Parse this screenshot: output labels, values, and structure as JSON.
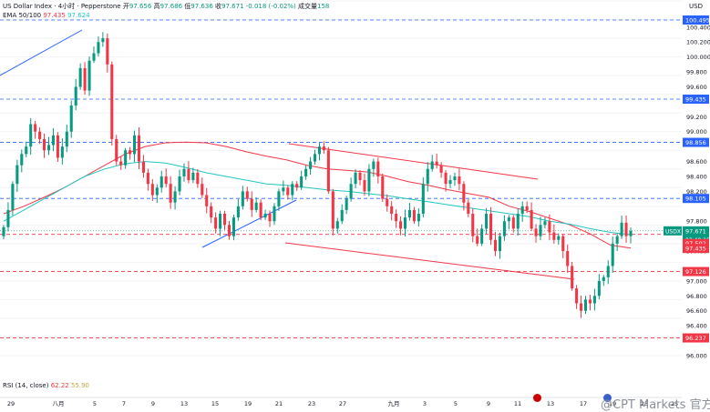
{
  "header": {
    "symbol": "US Dollar Index · 4小时 · Pepperstone",
    "open_label": "开",
    "open": "97.656",
    "high_label": "高",
    "high": "97.686",
    "low_label": "低",
    "low": "97.636",
    "close_label": "收",
    "close": "97.671",
    "change": "-0.018 (-0.02%)",
    "volume_label": "成交量",
    "volume": "158",
    "ema_label": "EMA 50/100",
    "ema50": "97.435",
    "ema100": "97.624"
  },
  "rsi": {
    "label": "RSI (14, close)",
    "v1": "62.22",
    "v2": "55.90"
  },
  "currency_label": "USD",
  "watermark": "@CPT Markets 官方",
  "colors": {
    "up": "#089981",
    "down": "#f23645",
    "ema50": "#f23645",
    "ema100": "#22c5c2",
    "trendline_blue": "#2962ff",
    "channel_red": "#f23645"
  },
  "chart_data": {
    "type": "candlestick",
    "title": "US Dollar Index · 4小时 · Pepperstone",
    "ylim": [
      96.0,
      100.495
    ],
    "x_ticks": [
      "29",
      "八月",
      "5",
      "7",
      "9",
      "13",
      "15",
      "19",
      "21",
      "23",
      "27",
      "九月",
      "3",
      "5",
      "9",
      "11",
      "13",
      "17",
      "19",
      "23",
      "25"
    ],
    "y_ticks": [
      "100.400",
      "100.200",
      "100.000",
      "99.800",
      "99.600",
      "99.200",
      "99.000",
      "98.600",
      "98.400",
      "98.200",
      "97.800",
      "97.400",
      "97.000",
      "96.800",
      "96.600",
      "96.400",
      "96.000"
    ],
    "levels": [
      {
        "value": 100.495,
        "label": "100.495",
        "color": "#2962ff",
        "line": "dashed"
      },
      {
        "value": 99.435,
        "label": "99.435",
        "color": "#2962ff",
        "line": "dashed"
      },
      {
        "value": 98.856,
        "label": "98.856",
        "color": "#2962ff",
        "line": "dashed"
      },
      {
        "value": 98.105,
        "label": "98.105",
        "color": "#2962ff",
        "line": "dashed"
      },
      {
        "value": 97.624,
        "label": "97.624",
        "color": "#f23645",
        "line": "dashed"
      },
      {
        "value": 97.126,
        "label": "97.126",
        "color": "#f23645",
        "line": "dashed"
      },
      {
        "value": 96.237,
        "label": "96.237",
        "color": "#f23645",
        "line": "dashed"
      }
    ],
    "price_tags": [
      {
        "value": 97.671,
        "label": "97.671",
        "sub": "03:40:15",
        "name": "USDX",
        "color": "#089981"
      },
      {
        "value": 97.502,
        "label": "97.502",
        "color": "#f23645"
      },
      {
        "value": 97.435,
        "label": "97.435",
        "color": "#f23645"
      }
    ],
    "closes": [
      97.72,
      97.95,
      98.3,
      98.55,
      98.7,
      98.8,
      99.1,
      99.0,
      98.9,
      98.75,
      98.82,
      98.95,
      98.65,
      98.8,
      99.0,
      99.35,
      99.6,
      99.85,
      99.55,
      99.95,
      100.05,
      100.2,
      100.25,
      99.9,
      98.9,
      98.6,
      98.55,
      98.75,
      98.7,
      98.95,
      98.6,
      98.45,
      98.3,
      98.15,
      98.25,
      98.4,
      98.3,
      98.05,
      98.2,
      98.4,
      98.5,
      98.35,
      98.45,
      98.3,
      98.15,
      98.0,
      97.85,
      97.7,
      97.9,
      97.75,
      97.6,
      97.85,
      98.0,
      98.2,
      98.1,
      97.95,
      98.05,
      97.85,
      97.9,
      97.8,
      98.0,
      98.2,
      98.25,
      98.15,
      98.3,
      98.25,
      98.4,
      98.5,
      98.6,
      98.7,
      98.8,
      98.75,
      98.2,
      97.7,
      97.8,
      97.95,
      98.1,
      98.3,
      98.45,
      98.35,
      98.2,
      98.5,
      98.6,
      98.4,
      98.1,
      98.0,
      97.9,
      97.8,
      97.7,
      97.85,
      97.95,
      97.8,
      97.9,
      98.3,
      98.5,
      98.6,
      98.55,
      98.45,
      98.3,
      98.35,
      98.4,
      98.3,
      98.05,
      97.9,
      97.6,
      97.5,
      97.7,
      97.9,
      97.55,
      97.4,
      97.6,
      97.8,
      97.85,
      97.7,
      97.9,
      98.0,
      97.95,
      97.7,
      97.6,
      97.75,
      97.8,
      97.65,
      97.55,
      97.6,
      97.4,
      97.2,
      96.9,
      96.7,
      96.6,
      96.75,
      96.7,
      96.8,
      97.0,
      97.05,
      97.2,
      97.5,
      97.6,
      97.78,
      97.6,
      97.67
    ],
    "series": [
      {
        "name": "EMA 50",
        "values": [
          97.9,
          98.0,
          98.12,
          98.25,
          98.4,
          98.55,
          98.7,
          98.8,
          98.85,
          98.86,
          98.85,
          98.8,
          98.73,
          98.67,
          98.62,
          98.55,
          98.5,
          98.48,
          98.46,
          98.4,
          98.33,
          98.28,
          98.22,
          98.17,
          98.12,
          98.0,
          97.93,
          97.84,
          97.75,
          97.63,
          97.48,
          97.44
        ]
      },
      {
        "name": "EMA 100",
        "values": [
          97.8,
          97.95,
          98.1,
          98.25,
          98.4,
          98.5,
          98.57,
          98.6,
          98.58,
          98.52,
          98.45,
          98.4,
          98.35,
          98.3,
          98.28,
          98.25,
          98.22,
          98.2,
          98.17,
          98.14,
          98.1,
          98.06,
          98.02,
          97.98,
          97.94,
          97.9,
          97.86,
          97.8,
          97.76,
          97.7,
          97.65,
          97.62
        ]
      }
    ]
  }
}
